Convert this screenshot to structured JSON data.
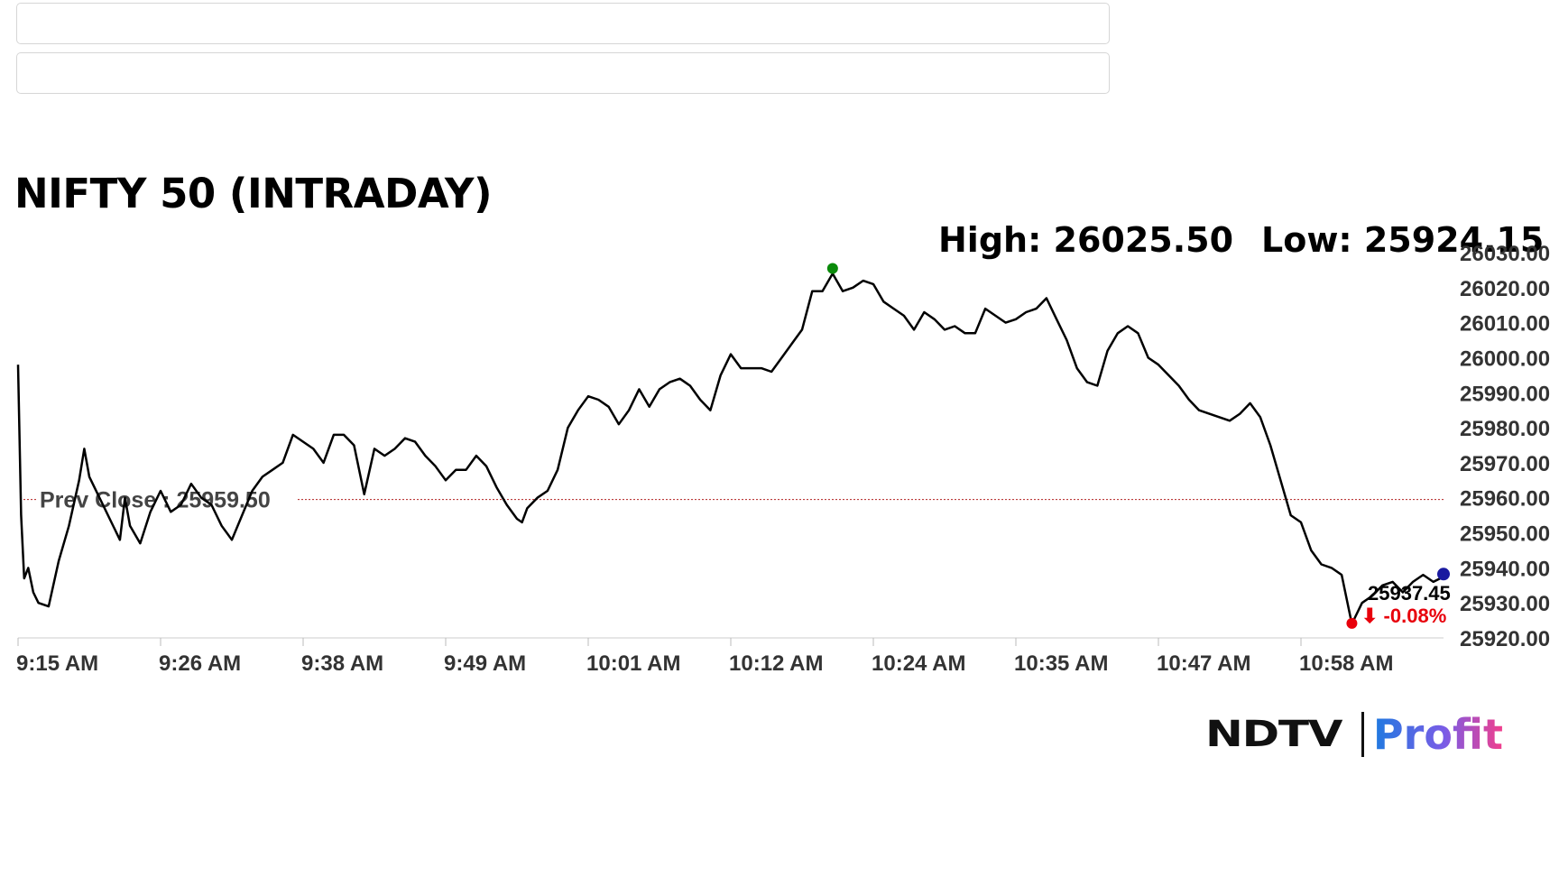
{
  "title": "NIFTY 50 (INTRADAY)",
  "stats": {
    "high_label": "High: 26025.50",
    "low_label": "Low: 25924.15"
  },
  "prev_close_label": "Prev Close : 25959.50",
  "last": {
    "value": "25937.45",
    "change": "-0.08%",
    "arrow": "⬇"
  },
  "logo": {
    "left": "NDTV",
    "right": "Profit"
  },
  "colors": {
    "line": "#000000",
    "prev_close_line": "#b22222",
    "high_marker": "#0a8a0a",
    "low_marker": "#e8000b",
    "last_marker": "#1a1aa0",
    "change_down": "#e8000b"
  },
  "chart_data": {
    "type": "line",
    "title": "NIFTY 50 (INTRADAY)",
    "xlabel": "",
    "ylabel": "",
    "x_ticks": [
      "9:15 AM",
      "9:26 AM",
      "9:38 AM",
      "9:49 AM",
      "10:01 AM",
      "10:12 AM",
      "10:24 AM",
      "10:35 AM",
      "10:47 AM",
      "10:58 AM"
    ],
    "y_ticks": [
      "26030.00",
      "26020.00",
      "26010.00",
      "26000.00",
      "25990.00",
      "25980.00",
      "25970.00",
      "25960.00",
      "25950.00",
      "25940.00",
      "25930.00",
      "25920.00"
    ],
    "ylim": [
      25920,
      26030
    ],
    "time_range_minutes": [
      0,
      112
    ],
    "prev_close": 25959.5,
    "high": 26025.5,
    "low": 25924.15,
    "last": 25937.45,
    "change_pct": -0.08,
    "series": [
      {
        "points": [
          [
            0,
            25998
          ],
          [
            0.3,
            25955
          ],
          [
            0.6,
            25937
          ],
          [
            1,
            25940
          ],
          [
            1.5,
            25933
          ],
          [
            2,
            25930
          ],
          [
            3,
            25929
          ],
          [
            4,
            25942
          ],
          [
            5,
            25952
          ],
          [
            6,
            25965
          ],
          [
            6.5,
            25974
          ],
          [
            7,
            25966
          ],
          [
            8,
            25960
          ],
          [
            9,
            25954
          ],
          [
            10,
            25948
          ],
          [
            10.5,
            25960
          ],
          [
            11,
            25952
          ],
          [
            12,
            25947
          ],
          [
            13,
            25956
          ],
          [
            14,
            25962
          ],
          [
            15,
            25956
          ],
          [
            16,
            25958
          ],
          [
            17,
            25964
          ],
          [
            18,
            25960
          ],
          [
            19,
            25958
          ],
          [
            20,
            25952
          ],
          [
            21,
            25948
          ],
          [
            22,
            25955
          ],
          [
            23,
            25962
          ],
          [
            24,
            25966
          ],
          [
            25,
            25968
          ],
          [
            26,
            25970
          ],
          [
            27,
            25978
          ],
          [
            28,
            25976
          ],
          [
            29,
            25974
          ],
          [
            30,
            25970
          ],
          [
            31,
            25978
          ],
          [
            32,
            25978
          ],
          [
            33,
            25975
          ],
          [
            34,
            25961
          ],
          [
            35,
            25974
          ],
          [
            36,
            25972
          ],
          [
            37,
            25974
          ],
          [
            38,
            25977
          ],
          [
            39,
            25976
          ],
          [
            40,
            25972
          ],
          [
            41,
            25969
          ],
          [
            42,
            25965
          ],
          [
            43,
            25968
          ],
          [
            44,
            25968
          ],
          [
            45,
            25972
          ],
          [
            46,
            25969
          ],
          [
            47,
            25963
          ],
          [
            48,
            25958
          ],
          [
            49,
            25954
          ],
          [
            49.5,
            25953
          ],
          [
            50,
            25957
          ],
          [
            51,
            25960
          ],
          [
            52,
            25962
          ],
          [
            53,
            25968
          ],
          [
            54,
            25980
          ],
          [
            55,
            25985
          ],
          [
            56,
            25989
          ],
          [
            57,
            25988
          ],
          [
            58,
            25986
          ],
          [
            59,
            25981
          ],
          [
            60,
            25985
          ],
          [
            61,
            25991
          ],
          [
            62,
            25986
          ],
          [
            63,
            25991
          ],
          [
            64,
            25993
          ],
          [
            65,
            25994
          ],
          [
            66,
            25992
          ],
          [
            67,
            25988
          ],
          [
            68,
            25985
          ],
          [
            69,
            25995
          ],
          [
            70,
            26001
          ],
          [
            71,
            25997
          ],
          [
            72,
            25997
          ],
          [
            73,
            25997
          ],
          [
            74,
            25996
          ],
          [
            75,
            26000
          ],
          [
            76,
            26004
          ],
          [
            77,
            26008
          ],
          [
            78,
            26019
          ],
          [
            79,
            26019
          ],
          [
            80,
            26024
          ],
          [
            81,
            26019
          ],
          [
            82,
            26020
          ],
          [
            83,
            26022
          ],
          [
            84,
            26021
          ],
          [
            85,
            26016
          ],
          [
            86,
            26014
          ],
          [
            87,
            26012
          ],
          [
            88,
            26008
          ],
          [
            89,
            26013
          ],
          [
            90,
            26011
          ],
          [
            91,
            26008
          ],
          [
            92,
            26009
          ],
          [
            93,
            26007
          ],
          [
            94,
            26007
          ],
          [
            95,
            26014
          ],
          [
            96,
            26012
          ],
          [
            97,
            26010
          ],
          [
            98,
            26011
          ],
          [
            99,
            26013
          ],
          [
            100,
            26014
          ],
          [
            101,
            26017
          ],
          [
            102,
            26011
          ],
          [
            103,
            26005
          ],
          [
            104,
            25997
          ],
          [
            105,
            25993
          ],
          [
            106,
            25992
          ],
          [
            107,
            26002
          ],
          [
            108,
            26007
          ],
          [
            109,
            26009
          ],
          [
            110,
            26007
          ],
          [
            111,
            26000
          ],
          [
            112,
            25998
          ],
          [
            113,
            25995
          ],
          [
            114,
            25992
          ],
          [
            115,
            25988
          ],
          [
            116,
            25985
          ],
          [
            117,
            25984
          ],
          [
            118,
            25983
          ],
          [
            119,
            25982
          ],
          [
            120,
            25984
          ],
          [
            121,
            25987
          ],
          [
            122,
            25983
          ],
          [
            123,
            25975
          ],
          [
            124,
            25965
          ],
          [
            125,
            25955
          ],
          [
            126,
            25953
          ],
          [
            127,
            25945
          ],
          [
            128,
            25941
          ],
          [
            129,
            25940
          ],
          [
            130,
            25938
          ],
          [
            131,
            25924
          ],
          [
            132,
            25930
          ],
          [
            133,
            25932
          ],
          [
            134,
            25935
          ],
          [
            135,
            25936
          ],
          [
            136,
            25933
          ],
          [
            137,
            25936
          ],
          [
            138,
            25938
          ],
          [
            139,
            25936
          ],
          [
            140,
            25937.45
          ]
        ]
      }
    ]
  }
}
